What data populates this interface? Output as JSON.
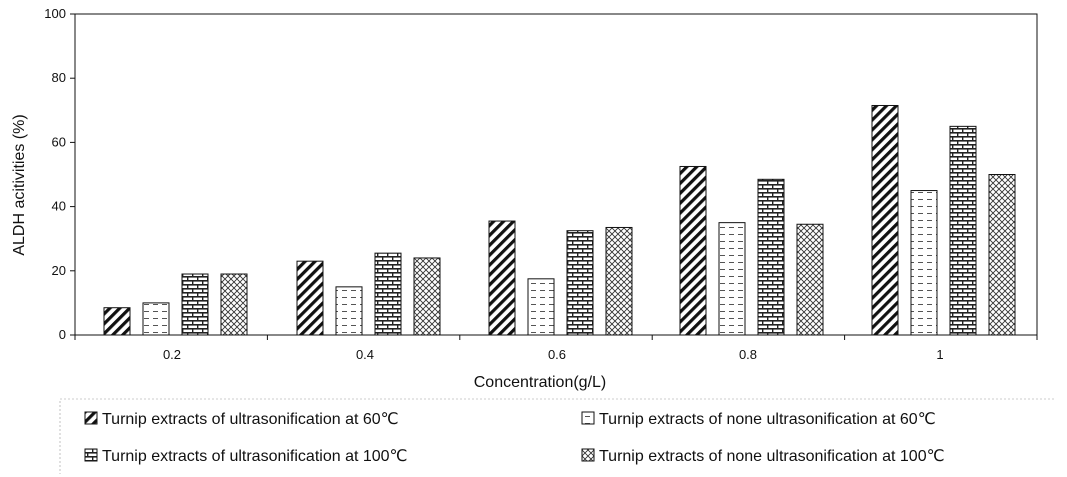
{
  "chart_data": {
    "type": "bar",
    "title": "",
    "xlabel": "Concentration(g/L)",
    "ylabel": "ALDH  acitivities (%)",
    "ylim": [
      0,
      100
    ],
    "yticks": [
      "0",
      "20",
      "40",
      "60",
      "80",
      "100"
    ],
    "categories": [
      "0.2",
      "0.4",
      "0.6",
      "0.8",
      "1"
    ],
    "grid": false,
    "legend_position": "bottom",
    "series": [
      {
        "name": "Turnip extracts of ultrasonification at 60℃",
        "pattern": "diagonal-hatch",
        "values": [
          8.5,
          23,
          35.5,
          52.5,
          71.5
        ]
      },
      {
        "name": "Turnip extracts of none ultrasonification at 60℃",
        "pattern": "dashed-horizontal",
        "values": [
          10,
          15,
          17.5,
          35,
          45
        ]
      },
      {
        "name": "Turnip extracts of ultrasonification at 100℃",
        "pattern": "brick",
        "values": [
          19,
          25.5,
          32.5,
          48.5,
          65
        ]
      },
      {
        "name": "Turnip extracts of none ultrasonification at 100℃",
        "pattern": "cross-hatch",
        "values": [
          19,
          24,
          33.5,
          34.5,
          50
        ]
      }
    ]
  }
}
